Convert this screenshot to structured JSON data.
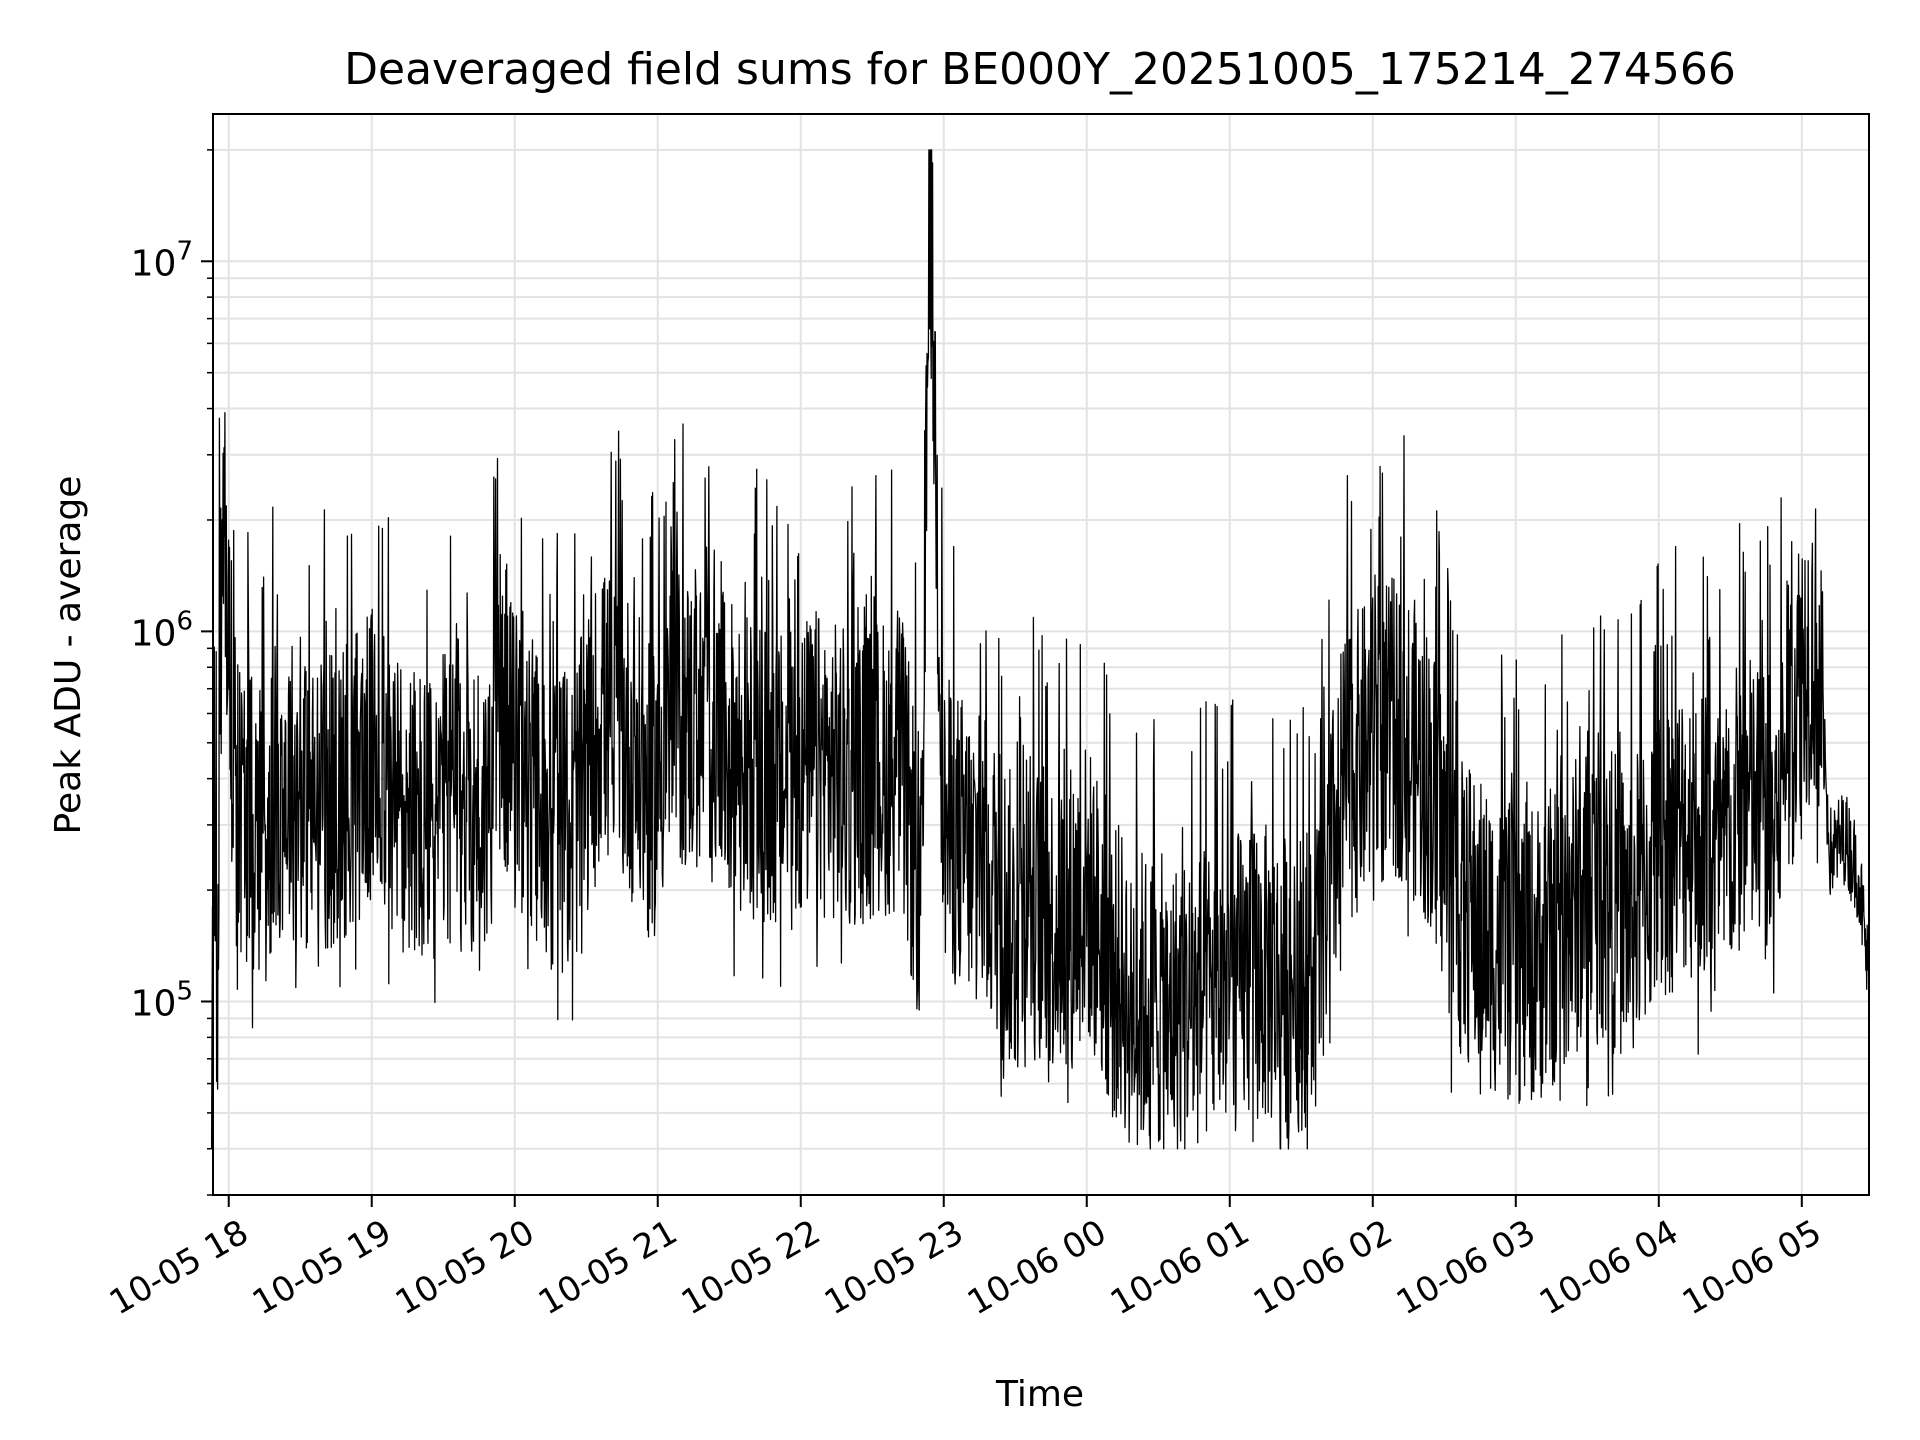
{
  "chart_data": {
    "type": "line",
    "title": "Deaveraged field sums for BE000Y_20251005_175214_274566",
    "xlabel": "Time",
    "ylabel": "Peak ADU - average",
    "yscale": "log",
    "ylim": [
      30000,
      25000000
    ],
    "xlim_hours": [
      -0.11,
      11.47
    ],
    "grid": true,
    "line_color": "#000000",
    "x_ticks": [
      {
        "hour": 0,
        "label": "10-05 18"
      },
      {
        "hour": 1,
        "label": "10-05 19"
      },
      {
        "hour": 2,
        "label": "10-05 20"
      },
      {
        "hour": 3,
        "label": "10-05 21"
      },
      {
        "hour": 4,
        "label": "10-05 22"
      },
      {
        "hour": 5,
        "label": "10-05 23"
      },
      {
        "hour": 6,
        "label": "10-06 00"
      },
      {
        "hour": 7,
        "label": "10-06 01"
      },
      {
        "hour": 8,
        "label": "10-06 02"
      },
      {
        "hour": 9,
        "label": "10-06 03"
      },
      {
        "hour": 10,
        "label": "10-06 04"
      },
      {
        "hour": 11,
        "label": "10-06 05"
      }
    ],
    "y_ticks": [
      {
        "value": 100000,
        "base": "10",
        "exp": "5"
      },
      {
        "value": 1000000,
        "base": "10",
        "exp": "6"
      },
      {
        "value": 10000000,
        "base": "10",
        "exp": "7"
      }
    ],
    "series": [
      {
        "name": "deaveraged field sum",
        "x_hours": [
          -0.12,
          -0.1,
          -0.08,
          -0.06,
          -0.04,
          -0.02,
          0.05,
          0.2,
          0.4,
          0.6,
          0.8,
          1.0,
          1.2,
          1.4,
          1.6,
          1.8,
          1.9,
          2.0,
          2.2,
          2.4,
          2.6,
          2.8,
          2.95,
          3.1,
          3.3,
          3.5,
          3.7,
          3.9,
          4.1,
          4.3,
          4.5,
          4.7,
          4.85,
          4.9,
          5.0,
          5.2,
          5.4,
          5.5,
          5.6,
          5.8,
          6.0,
          6.2,
          6.4,
          6.6,
          6.8,
          7.0,
          7.2,
          7.4,
          7.6,
          7.8,
          8.0,
          8.2,
          8.4,
          8.6,
          8.8,
          9.0,
          9.2,
          9.4,
          9.6,
          9.8,
          10.0,
          10.2,
          10.4,
          10.6,
          10.8,
          11.0,
          11.1,
          11.15,
          11.2,
          11.3,
          11.4,
          11.47
        ],
        "y": [
          65000,
          420000,
          95000,
          1300000,
          2000000,
          1400000,
          350000,
          300000,
          400000,
          320000,
          380000,
          450000,
          350000,
          300000,
          380000,
          320000,
          650000,
          450000,
          330000,
          300000,
          600000,
          500000,
          350000,
          600000,
          550000,
          480000,
          420000,
          380000,
          450000,
          400000,
          420000,
          450000,
          180000,
          18000000,
          300000,
          250000,
          200000,
          150000,
          180000,
          160000,
          200000,
          120000,
          100000,
          95000,
          100000,
          110000,
          120000,
          110000,
          120000,
          400000,
          500000,
          550000,
          400000,
          180000,
          150000,
          130000,
          140000,
          180000,
          200000,
          170000,
          250000,
          300000,
          250000,
          350000,
          300000,
          850000,
          900000,
          500000,
          250000,
          280000,
          220000,
          110000
        ],
        "noise_envelope": {
          "typical_low": 60000,
          "typical_high": 2800000,
          "min": 40000
        }
      }
    ]
  }
}
